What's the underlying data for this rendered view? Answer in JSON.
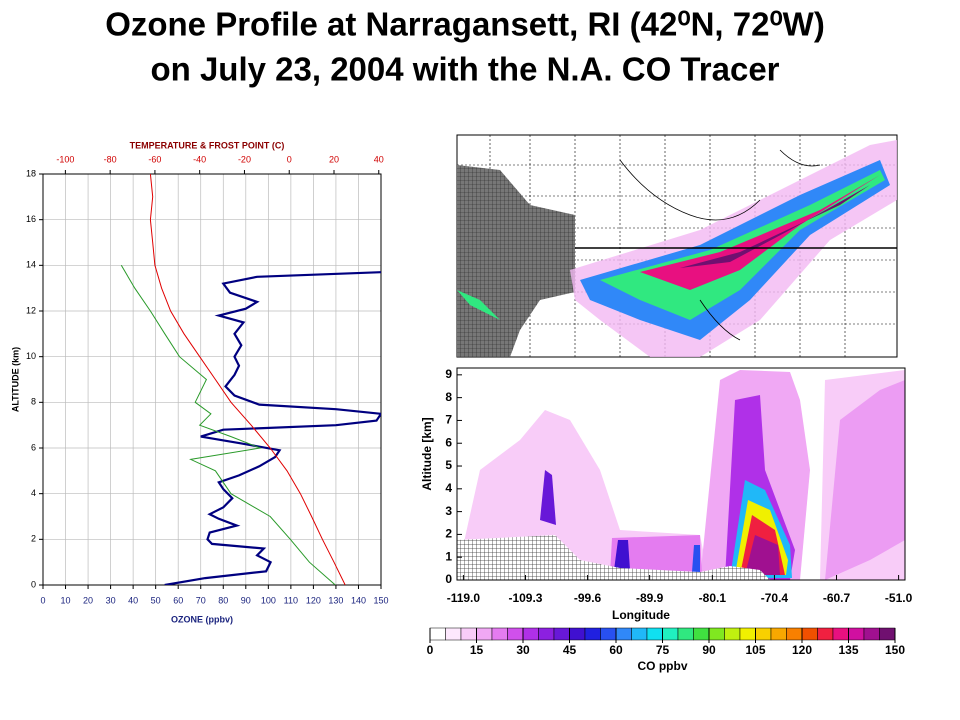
{
  "title_lines": [
    "Ozone Profile at  Narragansett, RI (42⁰N, 72⁰W)",
    "on July 23, 2004 with the N.A. CO Tracer"
  ],
  "chart_data": [
    {
      "type": "line",
      "xlabel": "OZONE (ppbv)",
      "x2label": "TEMPERATURE & FROST POINT (C)",
      "ylabel": "ALTITUDE (km)",
      "xlim": [
        0,
        150
      ],
      "xticks": [
        0,
        10,
        20,
        30,
        40,
        50,
        60,
        70,
        80,
        90,
        100,
        110,
        120,
        130,
        140,
        150
      ],
      "x2lim": [
        -110,
        41
      ],
      "x2ticks": [
        -100,
        -80,
        -60,
        -40,
        -20,
        0,
        20,
        40
      ],
      "ylim": [
        0,
        18
      ],
      "yticks": [
        0,
        2,
        4,
        6,
        8,
        10,
        12,
        14,
        16,
        18
      ],
      "grid": true,
      "series": [
        {
          "color": "#000080",
          "axis": "x",
          "values": [
            54,
            72,
            99,
            101,
            95,
            98,
            75,
            73,
            74,
            86,
            78,
            74,
            80,
            84,
            80,
            78,
            87,
            96,
            103,
            105,
            88,
            70,
            80,
            130,
            148,
            150,
            130,
            96,
            85,
            81,
            85,
            87,
            85,
            88,
            85,
            89,
            78,
            90,
            95,
            83,
            80,
            95,
            150
          ],
          "altitudes": [
            0.0,
            0.3,
            0.6,
            1.0,
            1.3,
            1.6,
            1.8,
            2.0,
            2.3,
            2.6,
            2.9,
            3.1,
            3.4,
            3.8,
            4.2,
            4.5,
            4.8,
            5.2,
            5.6,
            5.9,
            6.2,
            6.5,
            6.8,
            7.0,
            7.2,
            7.5,
            7.7,
            7.9,
            8.3,
            8.7,
            9.2,
            9.6,
            10.0,
            10.5,
            11.0,
            11.5,
            11.8,
            12.1,
            12.4,
            12.8,
            13.2,
            13.5,
            13.7
          ]
        },
        {
          "color": "#e00000",
          "axis": "x2",
          "values": [
            25,
            20,
            14.8,
            10,
            5,
            -1,
            -8.5,
            -17,
            -26,
            -33,
            -40,
            -47,
            -53,
            -57,
            -60,
            -61,
            -62,
            -61,
            -62
          ],
          "altitudes": [
            0,
            1,
            2,
            3,
            4,
            5,
            6,
            7,
            8,
            9,
            10,
            11,
            12,
            13,
            14,
            15,
            16,
            17,
            18
          ]
        },
        {
          "color": "#2a9a2a",
          "axis": "x2",
          "values": [
            20.6,
            9,
            0.5,
            -8.5,
            -26,
            -33,
            -44,
            -13,
            -26,
            -40,
            -35,
            -42,
            -37,
            -49,
            -55.6,
            -62,
            -69,
            -75
          ],
          "altitudes": [
            0,
            1,
            2,
            3,
            4,
            5,
            5.5,
            6,
            6.5,
            7,
            7.5,
            8,
            9,
            10,
            11,
            12,
            13,
            14
          ]
        }
      ]
    },
    {
      "type": "heatmap",
      "xlabel": "Longitude",
      "ylabel": "Altitude [km]",
      "xlim": [
        -120,
        -50
      ],
      "xticks": [
        {
          "value": -119,
          "label": "-119.0"
        },
        -109.3,
        -99.6,
        -89.9,
        -80.1,
        -70.4,
        -60.7,
        {
          "value": -51,
          "label": "-51.0"
        }
      ],
      "ylim": [
        0,
        9.3
      ],
      "yticks": [
        0,
        1,
        2,
        3,
        4,
        5,
        6,
        7,
        8,
        9
      ],
      "colorbar": {
        "label": "CO ppbv",
        "ticks": [
          0,
          15,
          30,
          45,
          60,
          75,
          90,
          105,
          120,
          135,
          150
        ],
        "colors": [
          "#ffffff",
          "#fde8fd",
          "#f8ccf8",
          "#f0a8f4",
          "#e47cf0",
          "#d050ec",
          "#b030e8",
          "#8c20e0",
          "#6818d8",
          "#4010d0",
          "#2020e0",
          "#2850f0",
          "#3088f8",
          "#20b8f8",
          "#10e0f0",
          "#20f0c0",
          "#30e880",
          "#40e040",
          "#80e820",
          "#c0f010",
          "#f0f000",
          "#f8d000",
          "#f8a800",
          "#f88000",
          "#f05000",
          "#f02040",
          "#e81080",
          "#d010a0",
          "#a01090",
          "#701070"
        ]
      }
    }
  ]
}
